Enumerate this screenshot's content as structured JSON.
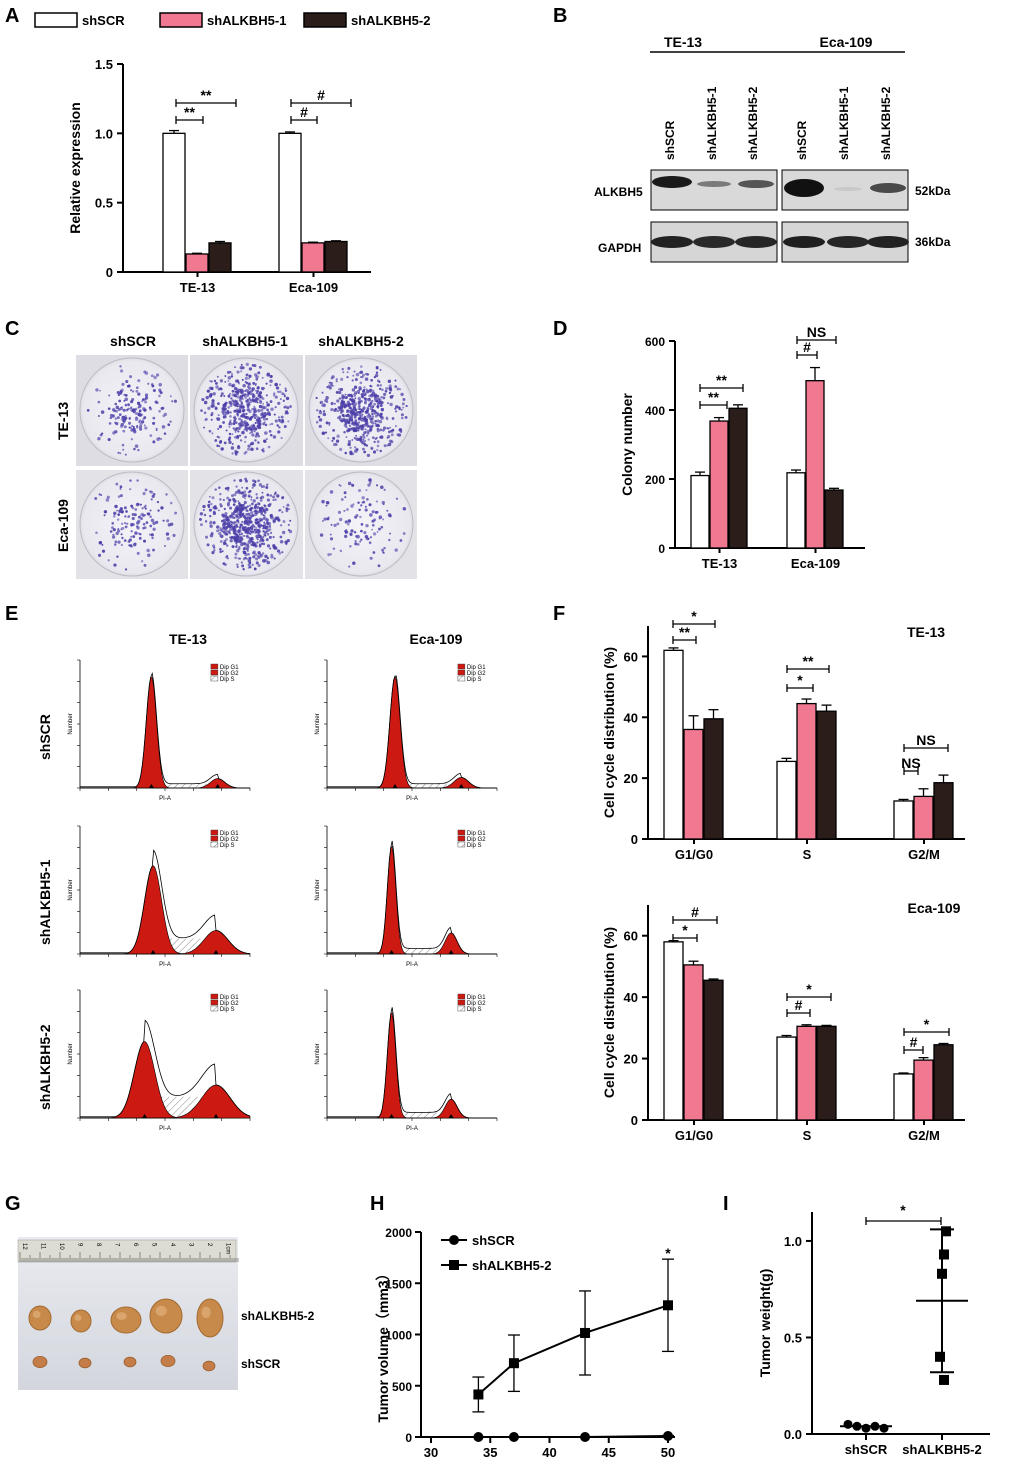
{
  "panels": {
    "A": "A",
    "B": "B",
    "C": "C",
    "D": "D",
    "E": "E",
    "F": "F",
    "G": "G",
    "H": "H",
    "I": "I"
  },
  "colors": {
    "shSCR": "#ffffff",
    "shALKBH5_1": "#f07890",
    "shALKBH5_2": "#2b1d1a",
    "black": "#000000",
    "red": "#cc1a12"
  },
  "legend": {
    "items": [
      "shSCR",
      "shALKBH5-1",
      "shALKBH5-2"
    ]
  },
  "chart_data": [
    {
      "id": "A",
      "type": "bar",
      "ylabel": "Relative expression",
      "ylim": [
        0,
        1.5
      ],
      "yticks": [
        "0",
        "0.5",
        "1.0",
        "1.5"
      ],
      "categories": [
        "TE-13",
        "Eca-109"
      ],
      "series": [
        {
          "name": "shSCR",
          "values": [
            1.0,
            1.0
          ],
          "err": [
            0.02,
            0.01
          ]
        },
        {
          "name": "shALKBH5-1",
          "values": [
            0.13,
            0.21
          ],
          "err": [
            0.005,
            0.005
          ]
        },
        {
          "name": "shALKBH5-2",
          "values": [
            0.21,
            0.22
          ],
          "err": [
            0.01,
            0.005
          ]
        }
      ],
      "annotations": [
        "**",
        "**",
        "#",
        "#"
      ]
    },
    {
      "id": "D",
      "type": "bar",
      "ylabel": "Colony number",
      "ylim": [
        0,
        600
      ],
      "yticks": [
        "0",
        "200",
        "400",
        "600"
      ],
      "categories": [
        "TE-13",
        "Eca-109"
      ],
      "series": [
        {
          "name": "shSCR",
          "values": [
            210,
            218
          ],
          "err": [
            10,
            8
          ]
        },
        {
          "name": "shALKBH5-1",
          "values": [
            368,
            485
          ],
          "err": [
            10,
            38
          ]
        },
        {
          "name": "shALKBH5-2",
          "values": [
            405,
            168
          ],
          "err": [
            10,
            5
          ]
        }
      ],
      "annotations": [
        "**",
        "**",
        "#",
        "NS"
      ]
    },
    {
      "id": "F1",
      "type": "bar",
      "title": "TE-13",
      "ylabel": "Cell cycle distribution (%)",
      "ylim": [
        0,
        70
      ],
      "yticks": [
        "0",
        "20",
        "40",
        "60"
      ],
      "categories": [
        "G1/G0",
        "S",
        "G2/M"
      ],
      "series": [
        {
          "name": "shSCR",
          "values": [
            62,
            25.5,
            12.5
          ],
          "err": [
            0.8,
            1,
            0.5
          ]
        },
        {
          "name": "shALKBH5-1",
          "values": [
            36,
            44.5,
            14
          ],
          "err": [
            4.5,
            1.5,
            2.5
          ]
        },
        {
          "name": "shALKBH5-2",
          "values": [
            39.5,
            42,
            18.5
          ],
          "err": [
            3,
            2,
            2.5
          ]
        }
      ],
      "annotations": [
        "**",
        "*",
        "*",
        "**",
        "NS",
        "NS"
      ]
    },
    {
      "id": "F2",
      "type": "bar",
      "title": "Eca-109",
      "ylabel": "Cell cycle distribution (%)",
      "ylim": [
        0,
        70
      ],
      "yticks": [
        "0",
        "20",
        "40",
        "60"
      ],
      "categories": [
        "G1/G0",
        "S",
        "G2/M"
      ],
      "series": [
        {
          "name": "shSCR",
          "values": [
            58,
            27,
            15
          ],
          "err": [
            0.4,
            0.5,
            0.3
          ]
        },
        {
          "name": "shALKBH5-1",
          "values": [
            50.5,
            30.5,
            19.5
          ],
          "err": [
            1.2,
            0.5,
            0.8
          ]
        },
        {
          "name": "shALKBH5-2",
          "values": [
            45.5,
            30.5,
            24.5
          ],
          "err": [
            0.4,
            0.3,
            0.4
          ]
        }
      ],
      "annotations": [
        "*",
        "#",
        "#",
        "*",
        "#",
        "*"
      ]
    },
    {
      "id": "H",
      "type": "line",
      "ylabel": "Tumor volume（mm3）",
      "ylim": [
        0,
        2000
      ],
      "xlim": [
        30,
        50
      ],
      "yticks": [
        "0",
        "500",
        "1000",
        "1500",
        "2000"
      ],
      "xticks": [
        "30",
        "35",
        "40",
        "45",
        "50"
      ],
      "series": [
        {
          "name": "shSCR",
          "x": [
            34,
            37,
            43,
            50
          ],
          "y": [
            0,
            0,
            0,
            10
          ],
          "err": [
            0,
            0,
            0,
            5
          ]
        },
        {
          "name": "shALKBH5-2",
          "x": [
            34,
            37,
            43,
            50
          ],
          "y": [
            415,
            720,
            1015,
            1285
          ],
          "err": [
            170,
            275,
            410,
            450
          ]
        }
      ],
      "annotations": [
        "*"
      ]
    },
    {
      "id": "I",
      "type": "scatter",
      "ylabel": "Tumor weight(g)",
      "ylim": [
        0,
        1.15
      ],
      "yticks": [
        "0.0",
        "0.5",
        "1.0"
      ],
      "categories": [
        "shSCR",
        "shALKBH5-2"
      ],
      "points": [
        [
          0.05,
          0.04,
          0.03,
          0.04,
          0.03
        ],
        [
          1.05,
          0.93,
          0.83,
          0.4,
          0.28
        ]
      ],
      "mean": [
        0.04,
        0.69
      ],
      "sd": [
        0.01,
        0.37
      ],
      "annotations": [
        "*"
      ]
    }
  ],
  "blot": {
    "lines": [
      "TE-13",
      "Eca-109"
    ],
    "lanes": [
      "shSCR",
      "shALKBH5-1",
      "shALKBH5-2",
      "shSCR",
      "shALKBH5-1",
      "shALKBH5-2"
    ],
    "proteins": [
      "ALKBH5",
      "GAPDH"
    ],
    "sizes": [
      "52kDa",
      "36kDa"
    ]
  },
  "colony": {
    "columns": [
      "shSCR",
      "shALKBH5-1",
      "shALKBH5-2"
    ],
    "rows": [
      "TE-13",
      "Eca-109"
    ]
  },
  "flow": {
    "columns": [
      "TE-13",
      "Eca-109"
    ],
    "rows": [
      "shSCR",
      "shALKBH5-1",
      "shALKBH5-2"
    ],
    "legend": [
      "Dip G1",
      "Dip G2",
      "Dip S"
    ],
    "xlabel": "PI-A",
    "ylabel": "Number"
  },
  "tumor": {
    "labels": [
      "shALKBH5-2",
      "shSCR"
    ],
    "ruler": [
      "12",
      "11",
      "10",
      "9",
      "8",
      "7",
      "6",
      "5",
      "4",
      "3",
      "2",
      "1cm"
    ]
  }
}
